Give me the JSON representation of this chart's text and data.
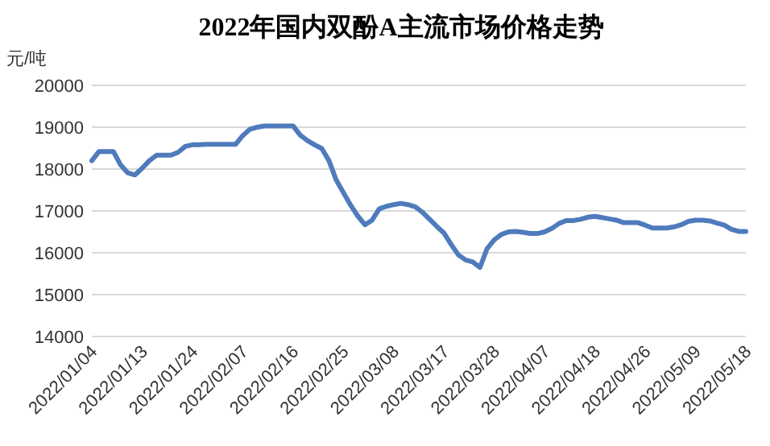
{
  "chart_data": {
    "type": "line",
    "title": "2022年国内双酚A主流市场价格走势",
    "ylabel": "元/吨",
    "categories": [
      "2022/01/04",
      null,
      null,
      null,
      null,
      null,
      null,
      "2022/01/13",
      null,
      null,
      null,
      null,
      null,
      null,
      "2022/01/24",
      null,
      null,
      null,
      null,
      null,
      null,
      "2022/02/07",
      null,
      null,
      null,
      null,
      null,
      null,
      "2022/02/16",
      null,
      null,
      null,
      null,
      null,
      null,
      "2022/02/25",
      null,
      null,
      null,
      null,
      null,
      null,
      "2022/03/08",
      null,
      null,
      null,
      null,
      null,
      null,
      "2022/03/17",
      null,
      null,
      null,
      null,
      null,
      null,
      "2022/03/28",
      null,
      null,
      null,
      null,
      null,
      null,
      "2022/04/07",
      null,
      null,
      null,
      null,
      null,
      null,
      "2022/04/18",
      null,
      null,
      null,
      null,
      null,
      null,
      "2022/04/26",
      null,
      null,
      null,
      null,
      null,
      null,
      "2022/05/09",
      null,
      null,
      null,
      null,
      null,
      null,
      "2022/05/18"
    ],
    "series": [
      {
        "color": "#4f7bbd",
        "values": [
          18200,
          18420,
          18420,
          18420,
          18100,
          17910,
          17860,
          18020,
          18200,
          18330,
          18330,
          18330,
          18400,
          18540,
          18580,
          18580,
          18590,
          18590,
          18590,
          18590,
          18590,
          18800,
          18950,
          19000,
          19030,
          19030,
          19030,
          19030,
          19030,
          18810,
          18680,
          18580,
          18490,
          18200,
          17740,
          17440,
          17140,
          16880,
          16670,
          16780,
          17050,
          17110,
          17150,
          17180,
          17150,
          17100,
          16970,
          16800,
          16630,
          16470,
          16200,
          15950,
          15830,
          15780,
          15650,
          16100,
          16310,
          16440,
          16500,
          16510,
          16490,
          16460,
          16460,
          16500,
          16580,
          16700,
          16770,
          16770,
          16800,
          16850,
          16870,
          16840,
          16810,
          16780,
          16720,
          16720,
          16720,
          16660,
          16590,
          16590,
          16590,
          16620,
          16670,
          16750,
          16780,
          16780,
          16760,
          16710,
          16660,
          16560,
          16510,
          16510
        ]
      }
    ],
    "ylim": [
      14000,
      20000
    ],
    "yticks": [
      14000,
      15000,
      16000,
      17000,
      18000,
      19000,
      20000
    ],
    "grid": "y"
  }
}
